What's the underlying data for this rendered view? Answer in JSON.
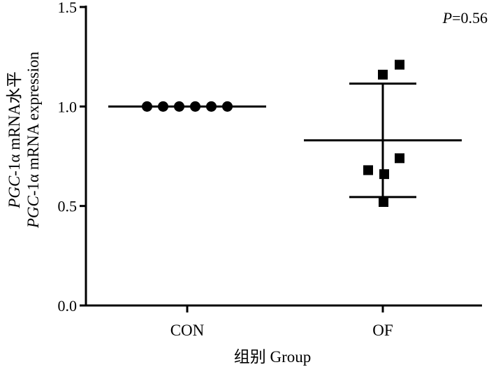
{
  "chart_data": {
    "type": "scatter",
    "subtype": "dot-plot with mean and SD bars",
    "categories": [
      "CON",
      "OF"
    ],
    "ylim": [
      0,
      1.5
    ],
    "yticks": [
      {
        "value": 0,
        "label": "0.0"
      },
      {
        "value": 0.5,
        "label": "0.5"
      },
      {
        "value": 1.0,
        "label": "1.0"
      },
      {
        "value": 1.5,
        "label": "1.5"
      }
    ],
    "ylabel_line1": {
      "italic": "PGC",
      "rest": "-1α mRNA水平"
    },
    "ylabel_line2": {
      "italic": "PGC",
      "rest": "-1α mRNA expression"
    },
    "xlabel": "组别  Group",
    "annotation": {
      "italic": "P",
      "rest": "=0.56"
    },
    "series": [
      {
        "category": "CON",
        "marker": "circle",
        "values": [
          1.0,
          1.0,
          1.0,
          1.0,
          1.0,
          1.0
        ],
        "mean": 1.0,
        "sd": 0
      },
      {
        "category": "OF",
        "marker": "square",
        "values": [
          1.16,
          1.21,
          0.68,
          0.66,
          0.74,
          0.52
        ],
        "mean": 0.83,
        "sd": 0.285
      }
    ],
    "grid": false,
    "legend": "none"
  }
}
